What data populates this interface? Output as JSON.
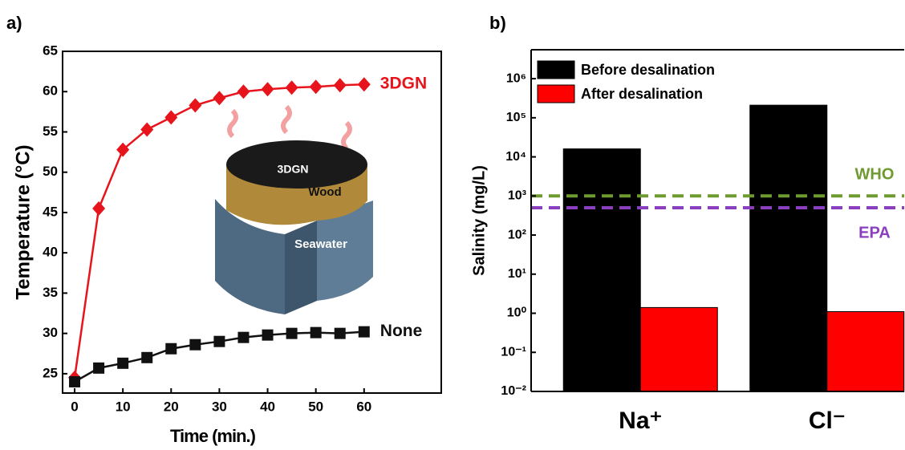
{
  "chart_data": [
    {
      "type": "line",
      "label": "a)",
      "x_label": "Time (min.)",
      "y_label": "Temperature (°C)",
      "x": [
        0,
        5,
        10,
        15,
        20,
        25,
        30,
        35,
        40,
        45,
        50,
        55,
        60
      ],
      "series": [
        {
          "name": "3DGN",
          "color": "#e8141b",
          "marker": "diamond",
          "values": [
            24.5,
            45.5,
            52.8,
            55.3,
            56.8,
            58.3,
            59.2,
            60.0,
            60.3,
            60.5,
            60.6,
            60.8,
            60.9
          ]
        },
        {
          "name": "None",
          "color": "#111111",
          "marker": "square",
          "values": [
            24.0,
            25.7,
            26.3,
            27.0,
            28.1,
            28.6,
            29.0,
            29.5,
            29.8,
            30.0,
            30.1,
            30.0,
            30.2
          ]
        }
      ],
      "xlim": [
        -2.5,
        76
      ],
      "xticks": [
        0,
        10,
        20,
        30,
        40,
        50,
        60
      ],
      "ylim": [
        22.6,
        65
      ],
      "yticks": [
        25,
        30,
        35,
        40,
        45,
        50,
        55,
        60,
        65
      ],
      "annotations": [
        "3DGN",
        "Wood",
        "Seawater"
      ]
    },
    {
      "type": "bar",
      "label": "b)",
      "y_label": "Salinity (mg/L)",
      "log_scale": true,
      "legend": "upper left",
      "categories": [
        "Na⁺",
        "Cl⁻"
      ],
      "series": [
        {
          "name": "Before desalination",
          "color": "#000000",
          "values": [
            16000,
            210000
          ]
        },
        {
          "name": "After desalination",
          "color": "#ff0000",
          "values": [
            1.4,
            1.1
          ]
        }
      ],
      "ylim": [
        0.01,
        5500000
      ],
      "yticks": [
        {
          "value": 0.01,
          "label": "10⁻²"
        },
        {
          "value": 0.1,
          "label": "10⁻¹"
        },
        {
          "value": 1,
          "label": "10⁰"
        },
        {
          "value": 10,
          "label": "10¹"
        },
        {
          "value": 100,
          "label": "10²"
        },
        {
          "value": 1000,
          "label": "10³"
        },
        {
          "value": 10000,
          "label": "10⁴"
        },
        {
          "value": 100000,
          "label": "10⁵"
        },
        {
          "value": 1000000,
          "label": "10⁶"
        }
      ],
      "hlines": [
        {
          "name": "WHO",
          "value": 1000,
          "color": "#6e9a2f"
        },
        {
          "name": "EPA",
          "value": 500,
          "color": "#8a3fbf"
        }
      ]
    }
  ]
}
